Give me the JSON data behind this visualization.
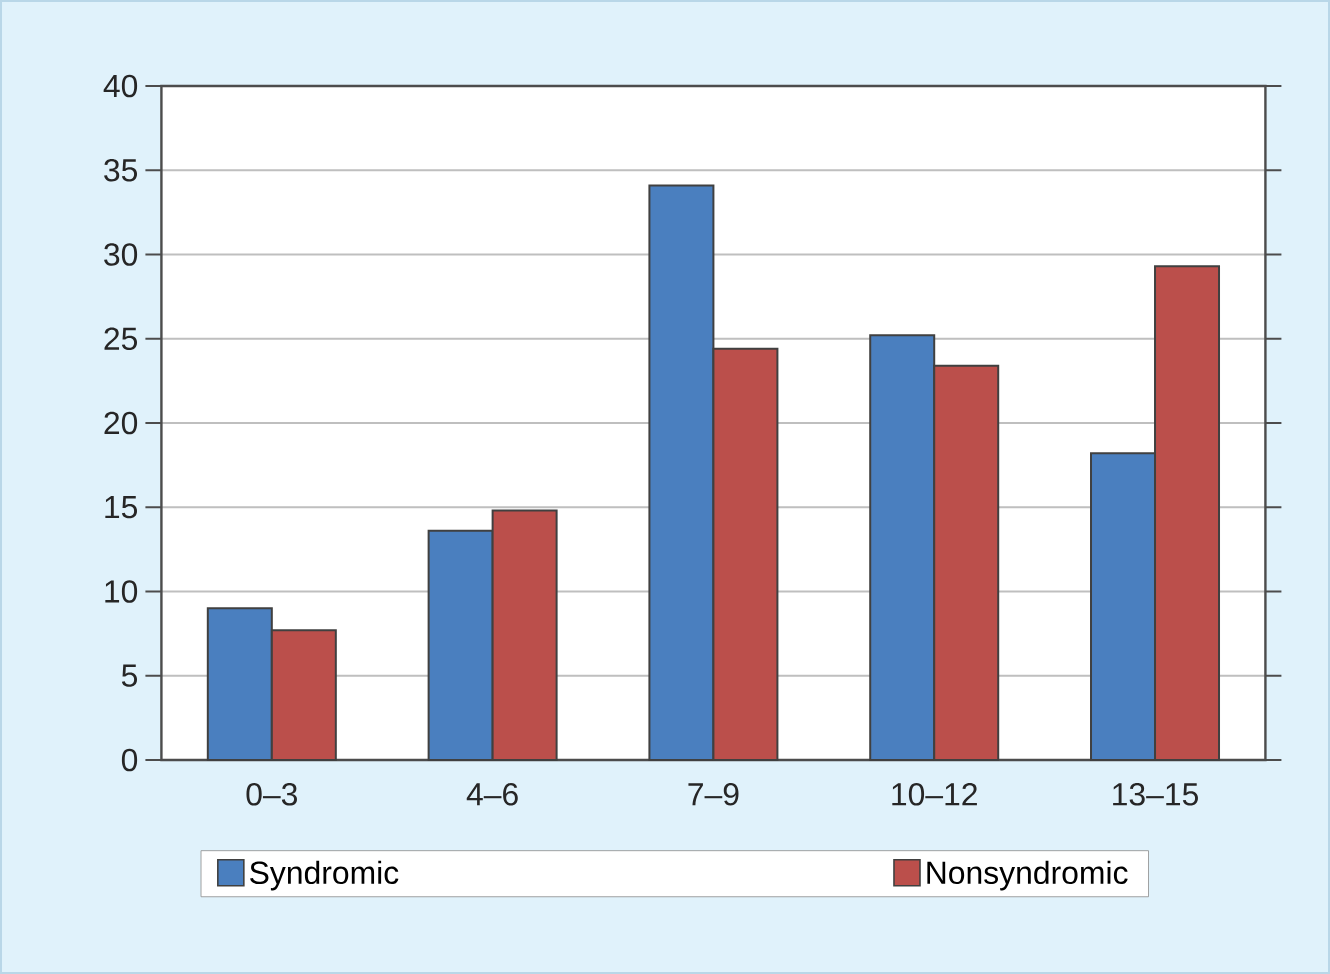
{
  "chart_data": {
    "type": "bar",
    "categories": [
      "0–3",
      "4–6",
      "7–9",
      "10–12",
      "13–15"
    ],
    "series": [
      {
        "name": "Syndromic",
        "color": "#4a7fbf",
        "values": [
          9.0,
          13.6,
          34.1,
          25.2,
          18.2
        ]
      },
      {
        "name": "Nonsyndromic",
        "color": "#bb4f4b",
        "values": [
          7.7,
          14.8,
          24.4,
          23.4,
          29.3
        ]
      }
    ],
    "ylim": [
      0,
      40
    ],
    "yticks": [
      0,
      5,
      10,
      15,
      20,
      25,
      30,
      35,
      40
    ],
    "grid": "y",
    "legend": "bottom"
  }
}
